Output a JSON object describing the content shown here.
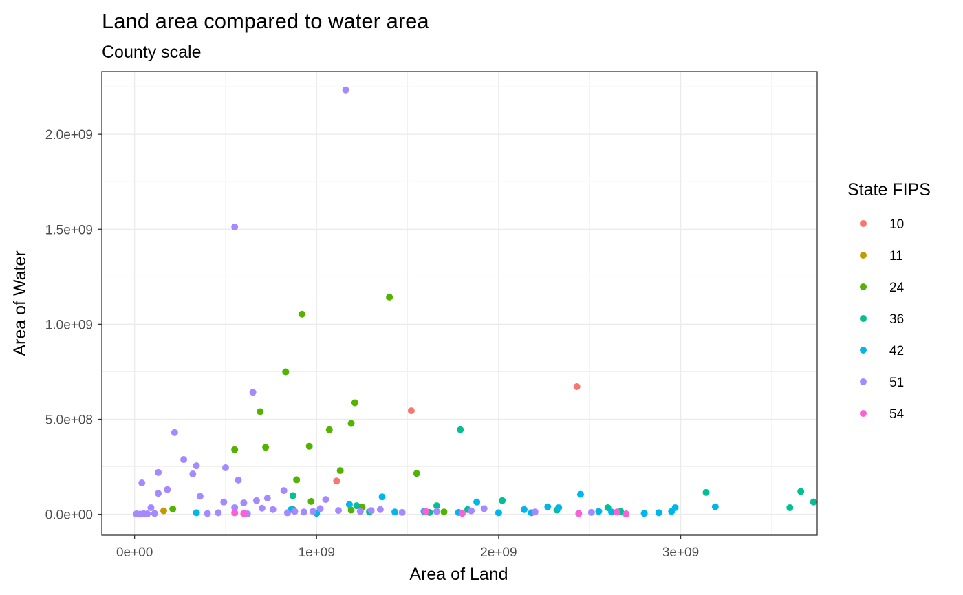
{
  "chart_data": {
    "type": "scatter",
    "title": "Land area compared to water area",
    "subtitle": "County scale",
    "xlabel": "Area of Land",
    "ylabel": "Area of Water",
    "xlim": [
      -180000000.0,
      3750000000.0
    ],
    "ylim": [
      -110000000.0,
      2330000000.0
    ],
    "x_ticks": [
      {
        "value": 0,
        "label": "0e+00"
      },
      {
        "value": 1000000000,
        "label": "1e+09"
      },
      {
        "value": 2000000000,
        "label": "2e+09"
      },
      {
        "value": 3000000000,
        "label": "3e+09"
      }
    ],
    "y_ticks": [
      {
        "value": 0,
        "label": "0.0e+00"
      },
      {
        "value": 500000000,
        "label": "5.0e+08"
      },
      {
        "value": 1000000000,
        "label": "1.0e+09"
      },
      {
        "value": 1500000000,
        "label": "1.5e+09"
      },
      {
        "value": 2000000000,
        "label": "2.0e+09"
      }
    ],
    "grid": true,
    "legend": {
      "title": "State FIPS",
      "placement": "right"
    },
    "series": [
      {
        "name": "10",
        "color": "#F8766D",
        "points": [
          [
            1110000000.0,
            175000000.0
          ],
          [
            1520000000.0,
            545000000.0
          ],
          [
            2430000000.0,
            672000000.0
          ]
        ]
      },
      {
        "name": "11",
        "color": "#C49A00",
        "points": [
          [
            160000000.0,
            18000000.0
          ]
        ]
      },
      {
        "name": "24",
        "color": "#53B400",
        "points": [
          [
            210000000.0,
            28000000.0
          ],
          [
            550000000.0,
            340000000.0
          ],
          [
            690000000.0,
            540000000.0
          ],
          [
            720000000.0,
            352000000.0
          ],
          [
            830000000.0,
            750000000.0
          ],
          [
            890000000.0,
            182000000.0
          ],
          [
            920000000.0,
            1053000000.0
          ],
          [
            960000000.0,
            358000000.0
          ],
          [
            970000000.0,
            68000000.0
          ],
          [
            1070000000.0,
            445000000.0
          ],
          [
            1130000000.0,
            230000000.0
          ],
          [
            1190000000.0,
            478000000.0
          ],
          [
            1210000000.0,
            587000000.0
          ],
          [
            1250000000.0,
            38000000.0
          ],
          [
            1400000000.0,
            1143000000.0
          ],
          [
            1550000000.0,
            215000000.0
          ],
          [
            1190000000.0,
            22000000.0
          ],
          [
            1700000000.0,
            12000000.0
          ],
          [
            870000000.0,
            25000000.0
          ]
        ]
      },
      {
        "name": "36",
        "color": "#00C094",
        "points": [
          [
            870000000.0,
            98000000.0
          ],
          [
            1220000000.0,
            45000000.0
          ],
          [
            1620000000.0,
            10000000.0
          ],
          [
            1660000000.0,
            45000000.0
          ],
          [
            1790000000.0,
            445000000.0
          ],
          [
            1830000000.0,
            25000000.0
          ],
          [
            2020000000.0,
            72000000.0
          ],
          [
            2320000000.0,
            22000000.0
          ],
          [
            2600000000.0,
            35000000.0
          ],
          [
            2670000000.0,
            15000000.0
          ],
          [
            3140000000.0,
            115000000.0
          ],
          [
            3600000000.0,
            35000000.0
          ],
          [
            3660000000.0,
            120000000.0
          ],
          [
            3730000000.0,
            65000000.0
          ],
          [
            1290000000.0,
            12000000.0
          ]
        ]
      },
      {
        "name": "42",
        "color": "#00B6EB",
        "points": [
          [
            340000000.0,
            8000000.0
          ],
          [
            860000000.0,
            25000000.0
          ],
          [
            1000000000.0,
            5000000.0
          ],
          [
            1180000000.0,
            52000000.0
          ],
          [
            1360000000.0,
            92000000.0
          ],
          [
            1430000000.0,
            12000000.0
          ],
          [
            1590000000.0,
            15000000.0
          ],
          [
            1780000000.0,
            10000000.0
          ],
          [
            1880000000.0,
            65000000.0
          ],
          [
            2000000000.0,
            8000000.0
          ],
          [
            2140000000.0,
            25000000.0
          ],
          [
            2270000000.0,
            40000000.0
          ],
          [
            2330000000.0,
            35000000.0
          ],
          [
            2450000000.0,
            105000000.0
          ],
          [
            2550000000.0,
            15000000.0
          ],
          [
            2620000000.0,
            12000000.0
          ],
          [
            2800000000.0,
            5000000.0
          ],
          [
            2880000000.0,
            8000000.0
          ],
          [
            2970000000.0,
            35000000.0
          ],
          [
            3190000000.0,
            40000000.0
          ],
          [
            2180000000.0,
            8000000.0
          ],
          [
            2950000000.0,
            15000000.0
          ]
        ]
      },
      {
        "name": "51",
        "color": "#A58AFF",
        "points": [
          [
            10000000.0,
            2000000.0
          ],
          [
            30000000.0,
            1000000.0
          ],
          [
            40000000.0,
            165000000.0
          ],
          [
            50000000.0,
            3000000.0
          ],
          [
            70000000.0,
            2000000.0
          ],
          [
            90000000.0,
            35000000.0
          ],
          [
            110000000.0,
            4000000.0
          ],
          [
            130000000.0,
            110000000.0
          ],
          [
            130000000.0,
            220000000.0
          ],
          [
            180000000.0,
            130000000.0
          ],
          [
            220000000.0,
            430000000.0
          ],
          [
            270000000.0,
            288000000.0
          ],
          [
            320000000.0,
            212000000.0
          ],
          [
            340000000.0,
            255000000.0
          ],
          [
            360000000.0,
            95000000.0
          ],
          [
            400000000.0,
            4000000.0
          ],
          [
            460000000.0,
            8000000.0
          ],
          [
            490000000.0,
            65000000.0
          ],
          [
            500000000.0,
            245000000.0
          ],
          [
            550000000.0,
            1512000000.0
          ],
          [
            570000000.0,
            180000000.0
          ],
          [
            600000000.0,
            60000000.0
          ],
          [
            650000000.0,
            642000000.0
          ],
          [
            670000000.0,
            72000000.0
          ],
          [
            730000000.0,
            85000000.0
          ],
          [
            760000000.0,
            25000000.0
          ],
          [
            820000000.0,
            125000000.0
          ],
          [
            840000000.0,
            8000000.0
          ],
          [
            880000000.0,
            15000000.0
          ],
          [
            930000000.0,
            12000000.0
          ],
          [
            1020000000.0,
            30000000.0
          ],
          [
            1050000000.0,
            78000000.0
          ],
          [
            1120000000.0,
            20000000.0
          ],
          [
            1160000000.0,
            2233000000.0
          ],
          [
            1240000000.0,
            15000000.0
          ],
          [
            1300000000.0,
            20000000.0
          ],
          [
            1350000000.0,
            25000000.0
          ],
          [
            1470000000.0,
            10000000.0
          ],
          [
            1660000000.0,
            15000000.0
          ],
          [
            1850000000.0,
            18000000.0
          ],
          [
            1920000000.0,
            30000000.0
          ],
          [
            2200000000.0,
            12000000.0
          ],
          [
            2510000000.0,
            10000000.0
          ],
          [
            620000000.0,
            2000000.0
          ],
          [
            980000000.0,
            15000000.0
          ],
          [
            700000000.0,
            32000000.0
          ],
          [
            550000000.0,
            35000000.0
          ]
        ]
      },
      {
        "name": "54",
        "color": "#FB61D7",
        "points": [
          [
            550000000.0,
            8000000.0
          ],
          [
            600000000.0,
            4000000.0
          ],
          [
            1600000000.0,
            15000000.0
          ],
          [
            1800000000.0,
            5000000.0
          ],
          [
            2440000000.0,
            4000000.0
          ],
          [
            2650000000.0,
            12000000.0
          ],
          [
            2700000000.0,
            2000000.0
          ]
        ]
      }
    ]
  }
}
